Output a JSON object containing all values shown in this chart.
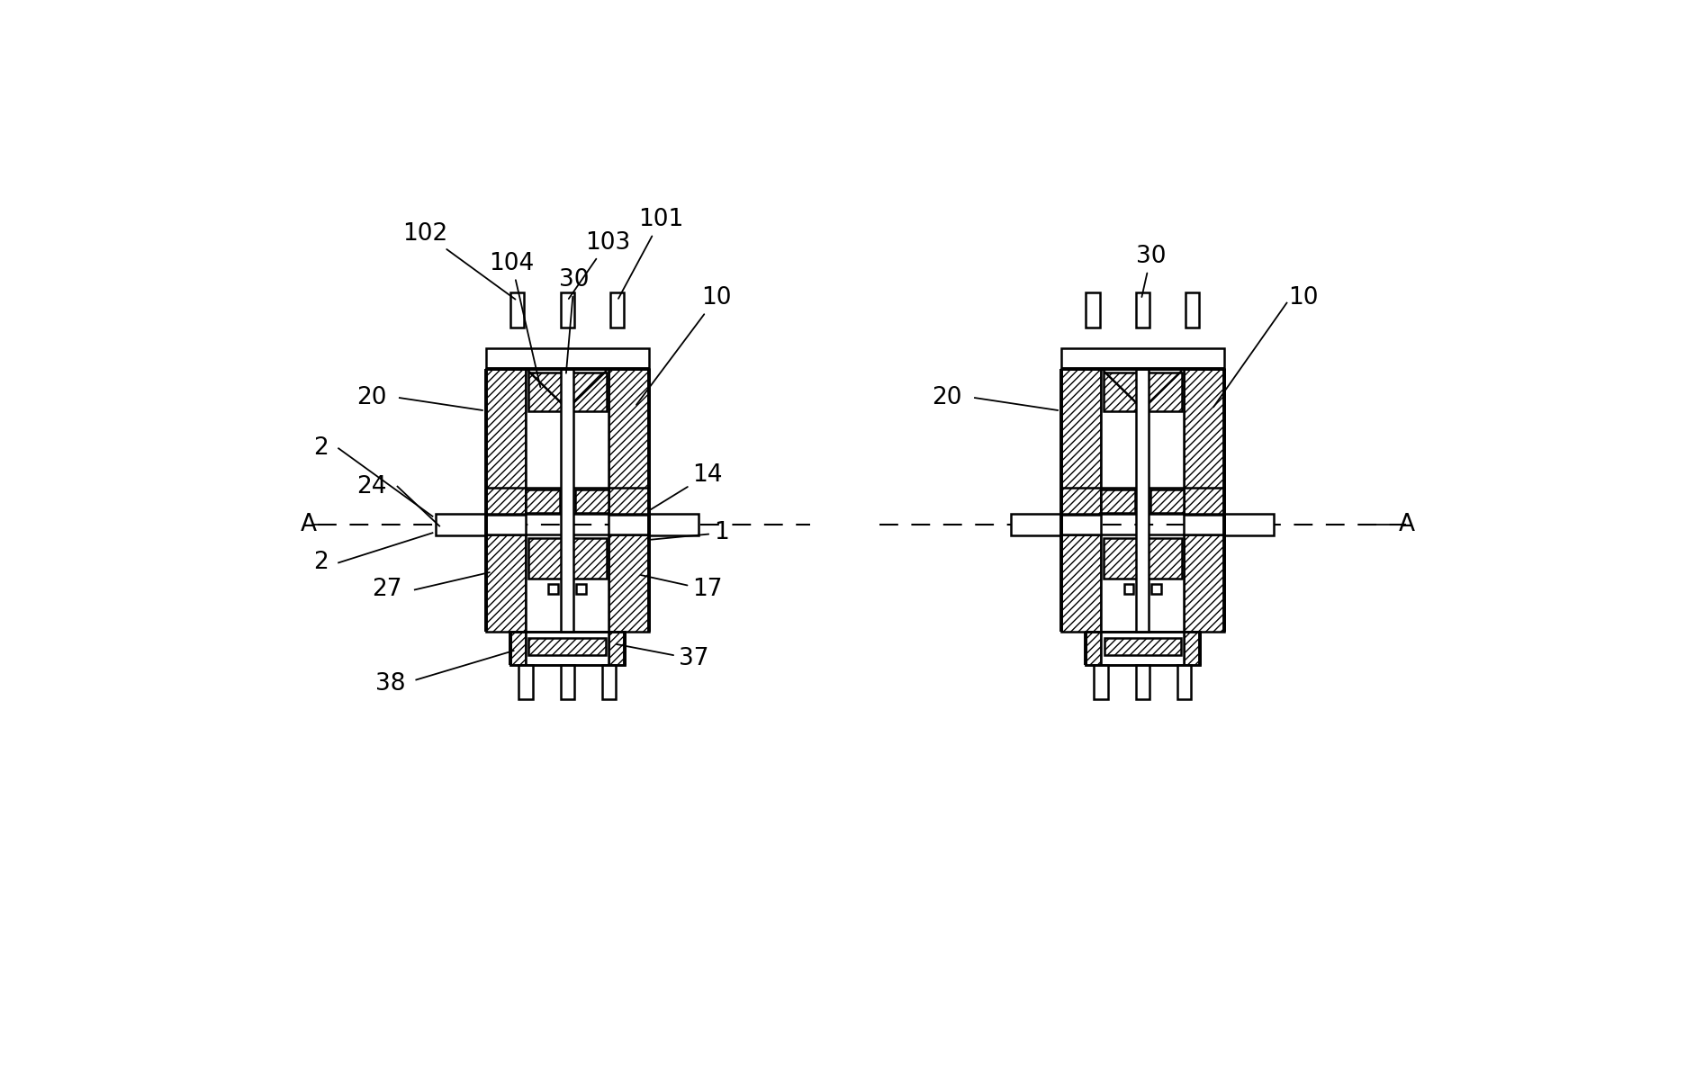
{
  "bg": "#ffffff",
  "ec": "#000000",
  "lw": 1.8,
  "lw2": 2.8,
  "fs": 19,
  "lcx": 5.0,
  "rcx": 13.4,
  "figsize": [
    18.93,
    11.88
  ],
  "dpi": 100
}
